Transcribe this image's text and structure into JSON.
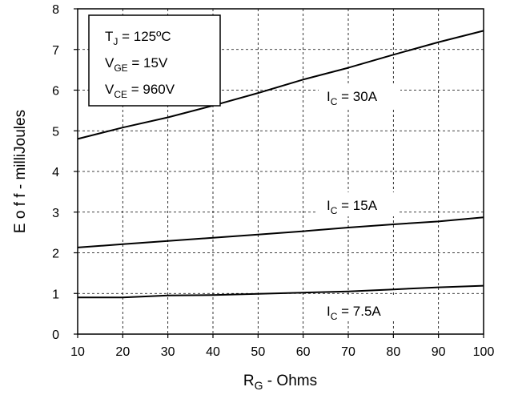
{
  "chart_data": {
    "type": "line",
    "xlabel": {
      "main": "R",
      "sub": "G",
      "rest": " - Ohms"
    },
    "ylabel": "E o f f  - milliJoules",
    "xlim": [
      10,
      100
    ],
    "ylim": [
      0,
      8
    ],
    "x_ticks": [
      "10",
      "20",
      "30",
      "40",
      "50",
      "60",
      "70",
      "80",
      "90",
      "100"
    ],
    "y_ticks": [
      "0",
      "1",
      "2",
      "3",
      "4",
      "5",
      "6",
      "7",
      "8"
    ],
    "grid": true,
    "conditions": [
      {
        "main": "T",
        "sub": "J",
        "rest": " = 125ºC"
      },
      {
        "main": "V",
        "sub": "GE",
        "rest": " = 15V"
      },
      {
        "main": "V",
        "sub": "CE",
        "rest": " = 960V"
      }
    ],
    "series": [
      {
        "name": {
          "main": "I",
          "sub": "C",
          "rest": " = 30A"
        },
        "x": [
          10,
          20,
          30,
          40,
          50,
          60,
          70,
          80,
          90,
          100
        ],
        "y": [
          4.8,
          5.08,
          5.33,
          5.62,
          5.93,
          6.26,
          6.55,
          6.87,
          7.18,
          7.46
        ]
      },
      {
        "name": {
          "main": "I",
          "sub": "C",
          "rest": " = 15A"
        },
        "x": [
          10,
          20,
          30,
          40,
          50,
          60,
          70,
          80,
          90,
          100
        ],
        "y": [
          2.13,
          2.21,
          2.29,
          2.37,
          2.45,
          2.53,
          2.62,
          2.7,
          2.77,
          2.87
        ]
      },
      {
        "name": {
          "main": "I",
          "sub": "C",
          "rest": " = 7.5A"
        },
        "x": [
          10,
          20,
          30,
          40,
          50,
          60,
          70,
          80,
          90,
          100
        ],
        "y": [
          0.9,
          0.9,
          0.95,
          0.96,
          0.99,
          1.02,
          1.05,
          1.1,
          1.15,
          1.19
        ]
      }
    ]
  }
}
